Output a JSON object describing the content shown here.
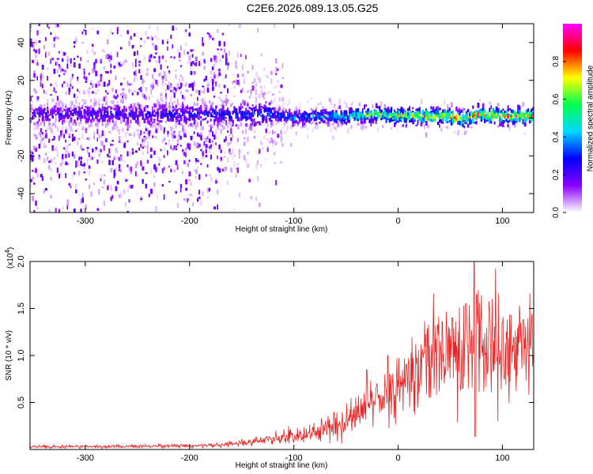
{
  "title": "C2E6.2026.089.13.05.G25",
  "chart_data": [
    {
      "type": "heatmap",
      "xlabel": "Height of straight line (km)",
      "ylabel": "Frequency (Hz)",
      "xlim": [
        -353,
        130
      ],
      "ylim": [
        -50,
        50
      ],
      "xticks": [
        -300,
        -200,
        -100,
        0,
        100
      ],
      "xtick_labels": [
        "-300",
        "-200",
        "-100",
        "0",
        "100"
      ],
      "yticks": [
        -40,
        -20,
        0,
        20,
        40
      ],
      "ytick_labels": [
        "-40",
        "-20",
        "0",
        "20",
        "40"
      ],
      "ridge": [
        {
          "x": -350,
          "f": 2
        },
        {
          "x": -300,
          "f": 2
        },
        {
          "x": -250,
          "f": 2
        },
        {
          "x": -200,
          "f": 2
        },
        {
          "x": -150,
          "f": 2
        },
        {
          "x": -120,
          "f": 2
        },
        {
          "x": -100,
          "f": 0
        },
        {
          "x": -75,
          "f": 1
        },
        {
          "x": -50,
          "f": 1
        },
        {
          "x": -25,
          "f": 2
        },
        {
          "x": 0,
          "f": 1
        },
        {
          "x": 25,
          "f": 1
        },
        {
          "x": 50,
          "f": 1
        },
        {
          "x": 62,
          "f": -1
        },
        {
          "x": 75,
          "f": 2
        },
        {
          "x": 100,
          "f": 1
        },
        {
          "x": 130,
          "f": 1
        }
      ],
      "amplitude_profile": [
        {
          "x": -350,
          "a": 0.25
        },
        {
          "x": -250,
          "a": 0.27
        },
        {
          "x": -150,
          "a": 0.33
        },
        {
          "x": -120,
          "a": 0.38
        },
        {
          "x": -100,
          "a": 0.43
        },
        {
          "x": -75,
          "a": 0.5
        },
        {
          "x": -50,
          "a": 0.58
        },
        {
          "x": -25,
          "a": 0.72
        },
        {
          "x": 0,
          "a": 0.86
        },
        {
          "x": 50,
          "a": 0.9
        },
        {
          "x": 100,
          "a": 0.9
        },
        {
          "x": 130,
          "a": 0.88
        }
      ],
      "colorbar": {
        "label": "Normalized spectral amplitude",
        "range": [
          0,
          1
        ],
        "ticks": [
          0.0,
          0.2,
          0.4,
          0.6,
          0.8
        ],
        "tick_labels": [
          "0.0",
          "0.2",
          "0.4",
          "0.6",
          "0.8"
        ],
        "colors": [
          "#ffffff",
          "#8a00ff",
          "#0000ff",
          "#00d8ff",
          "#00ff50",
          "#ffff00",
          "#ff0000",
          "#ff00ff"
        ]
      }
    },
    {
      "type": "line",
      "xlabel": "Height of straight line (km)",
      "ylabel": "SNR (10 * v/v)",
      "scale_label": "(x10",
      "scale_exp": "4",
      "xlim": [
        -353,
        130
      ],
      "ylim": [
        0,
        20000
      ],
      "xticks": [
        -300,
        -200,
        -100,
        0,
        100
      ],
      "xtick_labels": [
        "-300",
        "-200",
        "-100",
        "0",
        "100"
      ],
      "yticks": [
        5000,
        10000,
        15000,
        20000
      ],
      "ytick_labels": [
        "0.5",
        "1.0",
        "1.5",
        "2.0"
      ],
      "color": "#ee2222",
      "series": [
        {
          "name": "SNR",
          "x": [
            -353,
            -300,
            -250,
            -200,
            -170,
            -150,
            -130,
            -110,
            -100,
            -90,
            -80,
            -70,
            -60,
            -50,
            -40,
            -30,
            -20,
            -10,
            0,
            10,
            20,
            30,
            40,
            50,
            60,
            70,
            73,
            80,
            90,
            100,
            110,
            120,
            130
          ],
          "values": [
            300,
            300,
            350,
            400,
            500,
            700,
            1000,
            1300,
            1500,
            1700,
            1800,
            2200,
            2600,
            3000,
            3700,
            4500,
            5300,
            5900,
            6800,
            7800,
            8800,
            9600,
            10300,
            10600,
            10800,
            11000,
            11200,
            11000,
            10800,
            10700,
            10500,
            10300,
            10200
          ]
        }
      ],
      "peaks": [
        {
          "x": 73,
          "y": 20000
        },
        {
          "x": 75,
          "y": 16500
        },
        {
          "x": 65,
          "y": 15500
        },
        {
          "x": 100,
          "y": 13500
        },
        {
          "x": 120,
          "y": 13800
        },
        {
          "x": 52,
          "y": 14000
        },
        {
          "x": -30,
          "y": 8500
        },
        {
          "x": -10,
          "y": 10000
        }
      ],
      "dips": [
        {
          "x": 74,
          "y": 1400
        },
        {
          "x": 62,
          "y": 6500
        }
      ]
    }
  ]
}
